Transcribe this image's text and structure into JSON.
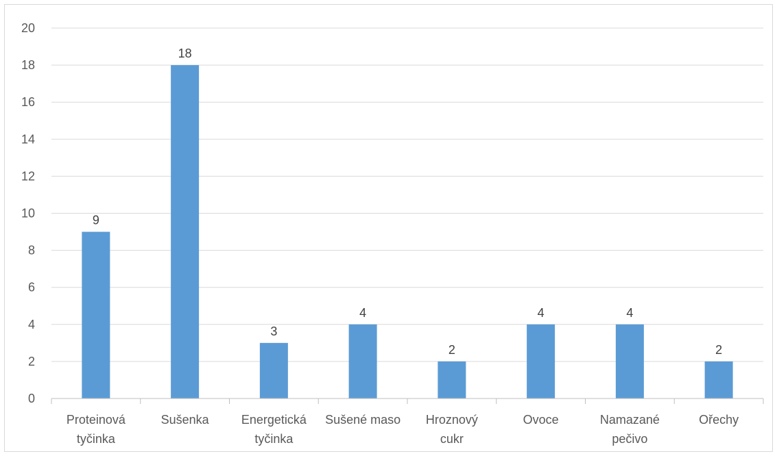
{
  "chart_data": {
    "type": "bar",
    "categories": [
      [
        "Proteinová",
        "tyčinka"
      ],
      [
        "Sušenka"
      ],
      [
        "Energetická",
        "tyčinka"
      ],
      [
        "Sušené maso"
      ],
      [
        "Hroznový",
        "cukr"
      ],
      [
        "Ovoce"
      ],
      [
        "Namazané",
        "pečivo"
      ],
      [
        "Ořechy"
      ]
    ],
    "values": [
      9,
      18,
      3,
      4,
      2,
      4,
      4,
      2
    ],
    "title": "",
    "xlabel": "",
    "ylabel": "",
    "ylim": [
      0,
      20
    ],
    "yticks": [
      0,
      2,
      4,
      6,
      8,
      10,
      12,
      14,
      16,
      18,
      20
    ],
    "grid": true,
    "legend": "none",
    "data_labels": true,
    "colors": {
      "bar": "#5b9bd5",
      "grid": "#d9d9d9",
      "axis": "#bfbfbf",
      "tick_text": "#595959",
      "label_text": "#404040"
    }
  }
}
